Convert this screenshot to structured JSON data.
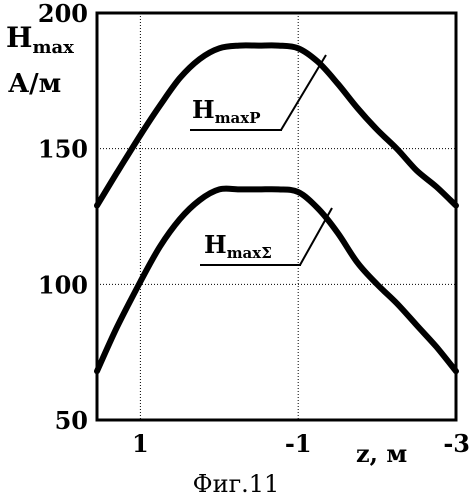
{
  "chart_data": {
    "type": "line",
    "xlabel": "z,  м",
    "ylabel_main": "H",
    "ylabel_sub": "max",
    "ylabel_unit": "А/м",
    "caption": "Фиг.11",
    "xticks": [
      {
        "label": "1",
        "value": 1
      },
      {
        "label": "-1",
        "value": -1
      },
      {
        "label": "-3",
        "value": -3
      }
    ],
    "yticks": [
      "50",
      "100",
      "150",
      "200"
    ],
    "xlim": [
      1.55,
      -3.0
    ],
    "ylim": [
      50,
      200
    ],
    "grid": true,
    "series": [
      {
        "name_main": "H",
        "name_sub": "maxP",
        "x": [
          1.55,
          1.3,
          1.0,
          0.75,
          0.5,
          0.25,
          0.0,
          -0.25,
          -0.5,
          -0.75,
          -1.0,
          -1.25,
          -1.5,
          -1.75,
          -2.0,
          -2.25,
          -2.5,
          -2.75,
          -3.0
        ],
        "y": [
          129,
          141,
          155,
          166,
          176,
          183,
          187,
          188,
          188,
          188,
          187,
          182,
          174,
          165,
          157,
          150,
          142,
          136,
          129
        ]
      },
      {
        "name_main": "H",
        "name_sub": "maxΣ",
        "x": [
          1.55,
          1.3,
          1.0,
          0.75,
          0.5,
          0.25,
          0.0,
          -0.25,
          -0.5,
          -0.75,
          -1.0,
          -1.25,
          -1.5,
          -1.75,
          -2.0,
          -2.25,
          -2.5,
          -2.75,
          -3.0
        ],
        "y": [
          68,
          84,
          101,
          114,
          124,
          131,
          135,
          135,
          135,
          135,
          134,
          128,
          119,
          108,
          100,
          93,
          85,
          77,
          68
        ]
      }
    ]
  }
}
